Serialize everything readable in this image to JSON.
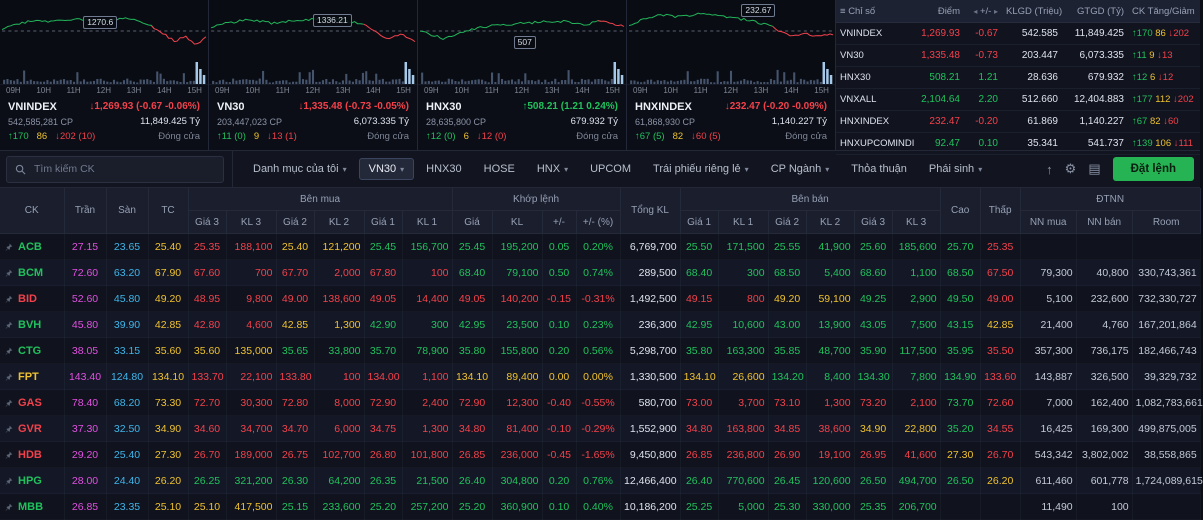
{
  "colors": {
    "up": "#21c15d",
    "down": "#f2414b",
    "reference": "#efc12f",
    "ceiling": "#e24fe2",
    "floor": "#3eb5ea",
    "order_button": "#25b353"
  },
  "chart_times": [
    "09H",
    "10H",
    "11H",
    "12H",
    "13H",
    "14H",
    "15H"
  ],
  "charts": [
    {
      "name": "VNINDEX",
      "ref_label": "1270.6",
      "change": "↓1,269.93 (-0.67 -0.06%)",
      "dir": "down",
      "cp": "542,585,281 CP",
      "gt": "11,849.425 Tỷ",
      "up": "↑170",
      "mid": "86",
      "down": "↓202 (10)",
      "session": "Đóng cửa"
    },
    {
      "name": "VN30",
      "ref_label": "1336.21",
      "change": "↓1,335.48 (-0.73 -0.05%)",
      "dir": "down",
      "cp": "203,447,023 CP",
      "gt": "6,073.335 Tỷ",
      "up": "↑11 (0)",
      "mid": "9",
      "down": "↓13 (1)",
      "session": "Đóng cửa"
    },
    {
      "name": "HNX30",
      "ref_label": "507",
      "change": "↑508.21 (1.21 0.24%)",
      "dir": "up",
      "cp": "28,635,800 CP",
      "gt": "679.932 Tỷ",
      "up": "↑12 (0)",
      "mid": "6",
      "down": "↓12 (0)",
      "session": "Đóng cửa"
    },
    {
      "name": "HNXINDEX",
      "ref_label": "232.67",
      "change": "↓232.47 (-0.20 -0.09%)",
      "dir": "down",
      "cp": "61,868,930 CP",
      "gt": "1,140.227 Tỷ",
      "up": "↑67 (5)",
      "mid": "82",
      "down": "↓60 (5)",
      "session": "Đóng cửa"
    }
  ],
  "index_table": {
    "headers": [
      "Chỉ số",
      "Điểm",
      "+/-",
      "KLGD (Triệu)",
      "GTGD (Tỷ)",
      "CK Tăng/Giảm"
    ],
    "rows": [
      {
        "name": "VNINDEX",
        "point": "1,269.93",
        "change": "-0.67",
        "dir": "down",
        "klgd": "542.585",
        "gtgd": "11,849.425",
        "up": "170",
        "ref": "86",
        "down": "202"
      },
      {
        "name": "VN30",
        "point": "1,335.48",
        "change": "-0.73",
        "dir": "down",
        "klgd": "203.447",
        "gtgd": "6,073.335",
        "up": "11",
        "ref": "9",
        "down": "13"
      },
      {
        "name": "HNX30",
        "point": "508.21",
        "change": "1.21",
        "dir": "up",
        "klgd": "28.636",
        "gtgd": "679.932",
        "up": "12",
        "ref": "6",
        "down": "12"
      },
      {
        "name": "VNXALL",
        "point": "2,104.64",
        "change": "2.20",
        "dir": "up",
        "klgd": "512.660",
        "gtgd": "12,404.883",
        "up": "177",
        "ref": "112",
        "down": "202"
      },
      {
        "name": "HNXINDEX",
        "point": "232.47",
        "change": "-0.20",
        "dir": "down",
        "klgd": "61.869",
        "gtgd": "1,140.227",
        "up": "67",
        "ref": "82",
        "down": "60"
      },
      {
        "name": "HNXUPCOMINDI",
        "point": "92.47",
        "change": "0.10",
        "dir": "up",
        "klgd": "35.341",
        "gtgd": "541.737",
        "up": "139",
        "ref": "106",
        "down": "111"
      }
    ]
  },
  "toolbar": {
    "search_placeholder": "Tìm kiếm CK",
    "order_button": "Đặt lệnh",
    "tabs": [
      {
        "label": "Danh mục của tôi",
        "caret": true,
        "active": false
      },
      {
        "label": "VN30",
        "caret": true,
        "active": true
      },
      {
        "label": "HNX30",
        "caret": false,
        "active": false
      },
      {
        "label": "HOSE",
        "caret": false,
        "active": false
      },
      {
        "label": "HNX",
        "caret": true,
        "active": false
      },
      {
        "label": "UPCOM",
        "caret": false,
        "active": false
      },
      {
        "label": "Trái phiếu riêng lẻ",
        "caret": true,
        "active": false
      },
      {
        "label": "CP Ngành",
        "caret": true,
        "active": false
      },
      {
        "label": "Thỏa thuận",
        "caret": false,
        "active": false
      },
      {
        "label": "Phái sinh",
        "caret": true,
        "active": false
      }
    ]
  },
  "board": {
    "groups": {
      "buy": "Bên mua",
      "match": "Khớp lệnh",
      "sell": "Bên bán",
      "foreign": "ĐTNN"
    },
    "cols": {
      "ck": "CK",
      "ceil": "Trần",
      "floor": "Sàn",
      "ref": "TC",
      "g3": "Giá 3",
      "v3": "KL 3",
      "g2": "Giá 2",
      "v2": "KL 2",
      "g1": "Giá 1",
      "v1": "KL 1",
      "price": "Giá",
      "vol": "KL",
      "chg": "+/-",
      "pct": "+/- (%)",
      "total": "Tổng KL",
      "sg1": "Giá 1",
      "sv1": "KL 1",
      "sg2": "Giá 2",
      "sv2": "KL 2",
      "sg3": "Giá 3",
      "sv3": "KL 3",
      "high": "Cao",
      "low": "Thấp",
      "nnbuy": "NN mua",
      "nnsell": "NN bán",
      "room": "Room"
    },
    "rows": [
      {
        "ck": "ACB",
        "ceil": 27.15,
        "floor": 23.65,
        "ref": 25.4,
        "b": [
          25.35,
          "188,100",
          25.4,
          "121,200",
          25.45,
          "156,700"
        ],
        "m": [
          25.45,
          "195,200",
          "0.05",
          "0.20%"
        ],
        "total": "6,769,700",
        "s": [
          25.5,
          "171,500",
          25.55,
          "41,900",
          25.6,
          "185,600"
        ],
        "high": 25.7,
        "low": 25.35,
        "nn": [
          "",
          "",
          ""
        ]
      },
      {
        "ck": "BCM",
        "ceil": 72.6,
        "floor": 63.2,
        "ref": 67.9,
        "b": [
          67.6,
          "700",
          67.7,
          "2,000",
          67.8,
          "100"
        ],
        "m": [
          68.4,
          "79,100",
          "0.50",
          "0.74%"
        ],
        "total": "289,500",
        "s": [
          68.4,
          "300",
          68.5,
          "5,400",
          68.6,
          "1,100"
        ],
        "high": 68.5,
        "low": 67.5,
        "nn": [
          "79,300",
          "40,800",
          "330,743,361"
        ]
      },
      {
        "ck": "BID",
        "ceil": 52.6,
        "floor": 45.8,
        "ref": 49.2,
        "b": [
          48.95,
          "9,800",
          49.0,
          "138,600",
          49.05,
          "14,400"
        ],
        "m": [
          49.05,
          "140,200",
          "-0.15",
          "-0.31%"
        ],
        "total": "1,492,500",
        "s": [
          49.15,
          "800",
          49.2,
          "59,100",
          49.25,
          "2,900"
        ],
        "high": 49.5,
        "low": 49.0,
        "nn": [
          "5,100",
          "232,600",
          "732,330,727"
        ]
      },
      {
        "ck": "BVH",
        "ceil": 45.8,
        "floor": 39.9,
        "ref": 42.85,
        "b": [
          42.8,
          "4,600",
          42.85,
          "1,300",
          42.9,
          "300"
        ],
        "m": [
          42.95,
          "23,500",
          "0.10",
          "0.23%"
        ],
        "total": "236,300",
        "s": [
          42.95,
          "10,600",
          43.0,
          "13,900",
          43.05,
          "7,500"
        ],
        "high": 43.15,
        "low": 42.85,
        "nn": [
          "21,400",
          "4,760",
          "167,201,864"
        ]
      },
      {
        "ck": "CTG",
        "ceil": 38.05,
        "floor": 33.15,
        "ref": 35.6,
        "b": [
          35.6,
          "135,000",
          35.65,
          "33,800",
          35.7,
          "78,900"
        ],
        "m": [
          35.8,
          "155,800",
          "0.20",
          "0.56%"
        ],
        "total": "5,298,700",
        "s": [
          35.8,
          "163,300",
          35.85,
          "48,700",
          35.9,
          "117,500"
        ],
        "high": 35.95,
        "low": 35.5,
        "nn": [
          "357,300",
          "736,175",
          "182,466,743"
        ]
      },
      {
        "ck": "FPT",
        "ceil": 143.4,
        "floor": 124.8,
        "ref": 134.1,
        "b": [
          133.7,
          "22,100",
          133.8,
          "100",
          134.0,
          "1,100"
        ],
        "m": [
          134.1,
          "89,400",
          "0.00",
          "0.00%"
        ],
        "total": "1,330,500",
        "s": [
          134.1,
          "26,600",
          134.2,
          "8,400",
          134.3,
          "7,800"
        ],
        "high": 134.9,
        "low": 133.6,
        "nn": [
          "143,887",
          "326,500",
          "39,329,732"
        ]
      },
      {
        "ck": "GAS",
        "ceil": 78.4,
        "floor": 68.2,
        "ref": 73.3,
        "b": [
          72.7,
          "30,300",
          72.8,
          "8,000",
          72.9,
          "2,400"
        ],
        "m": [
          72.9,
          "12,300",
          "-0.40",
          "-0.55%"
        ],
        "total": "580,700",
        "s": [
          73.0,
          "3,700",
          73.1,
          "1,300",
          73.2,
          "2,100"
        ],
        "high": 73.7,
        "low": 72.6,
        "nn": [
          "7,000",
          "162,400",
          "1,082,783,661"
        ]
      },
      {
        "ck": "GVR",
        "ceil": 37.3,
        "floor": 32.5,
        "ref": 34.9,
        "b": [
          34.6,
          "34,700",
          34.7,
          "6,000",
          34.75,
          "1,300"
        ],
        "m": [
          34.8,
          "81,400",
          "-0.10",
          "-0.29%"
        ],
        "total": "1,552,900",
        "s": [
          34.8,
          "163,800",
          34.85,
          "38,600",
          34.9,
          "22,800"
        ],
        "high": 35.2,
        "low": 34.55,
        "nn": [
          "16,425",
          "169,300",
          "499,875,005"
        ]
      },
      {
        "ck": "HDB",
        "ceil": 29.2,
        "floor": 25.4,
        "ref": 27.3,
        "b": [
          26.7,
          "189,000",
          26.75,
          "102,700",
          26.8,
          "101,800"
        ],
        "m": [
          26.85,
          "236,000",
          "-0.45",
          "-1.65%"
        ],
        "total": "9,450,800",
        "s": [
          26.85,
          "236,800",
          26.9,
          "19,100",
          26.95,
          "41,600"
        ],
        "high": 27.3,
        "low": 26.7,
        "nn": [
          "543,342",
          "3,802,002",
          "38,558,865"
        ]
      },
      {
        "ck": "HPG",
        "ceil": 28.0,
        "floor": 24.4,
        "ref": 26.2,
        "b": [
          26.25,
          "321,200",
          26.3,
          "64,200",
          26.35,
          "21,500"
        ],
        "m": [
          26.4,
          "304,800",
          "0.20",
          "0.76%"
        ],
        "total": "12,466,400",
        "s": [
          26.4,
          "770,600",
          26.45,
          "120,600",
          26.5,
          "494,700"
        ],
        "high": 26.5,
        "low": 26.2,
        "nn": [
          "611,460",
          "601,778",
          "1,724,089,615"
        ]
      },
      {
        "ck": "MBB",
        "ceil": 26.85,
        "floor": 23.35,
        "ref": 25.1,
        "b": [
          25.1,
          "417,500",
          25.15,
          "233,600",
          25.2,
          "257,200"
        ],
        "m": [
          25.2,
          "360,900",
          "0.10",
          "0.40%"
        ],
        "total": "10,186,200",
        "s": [
          25.25,
          "5,000",
          25.3,
          "330,000",
          25.35,
          "206,700"
        ],
        "high": null,
        "low": null,
        "nn": [
          "11,490",
          "100",
          ""
        ]
      }
    ]
  }
}
